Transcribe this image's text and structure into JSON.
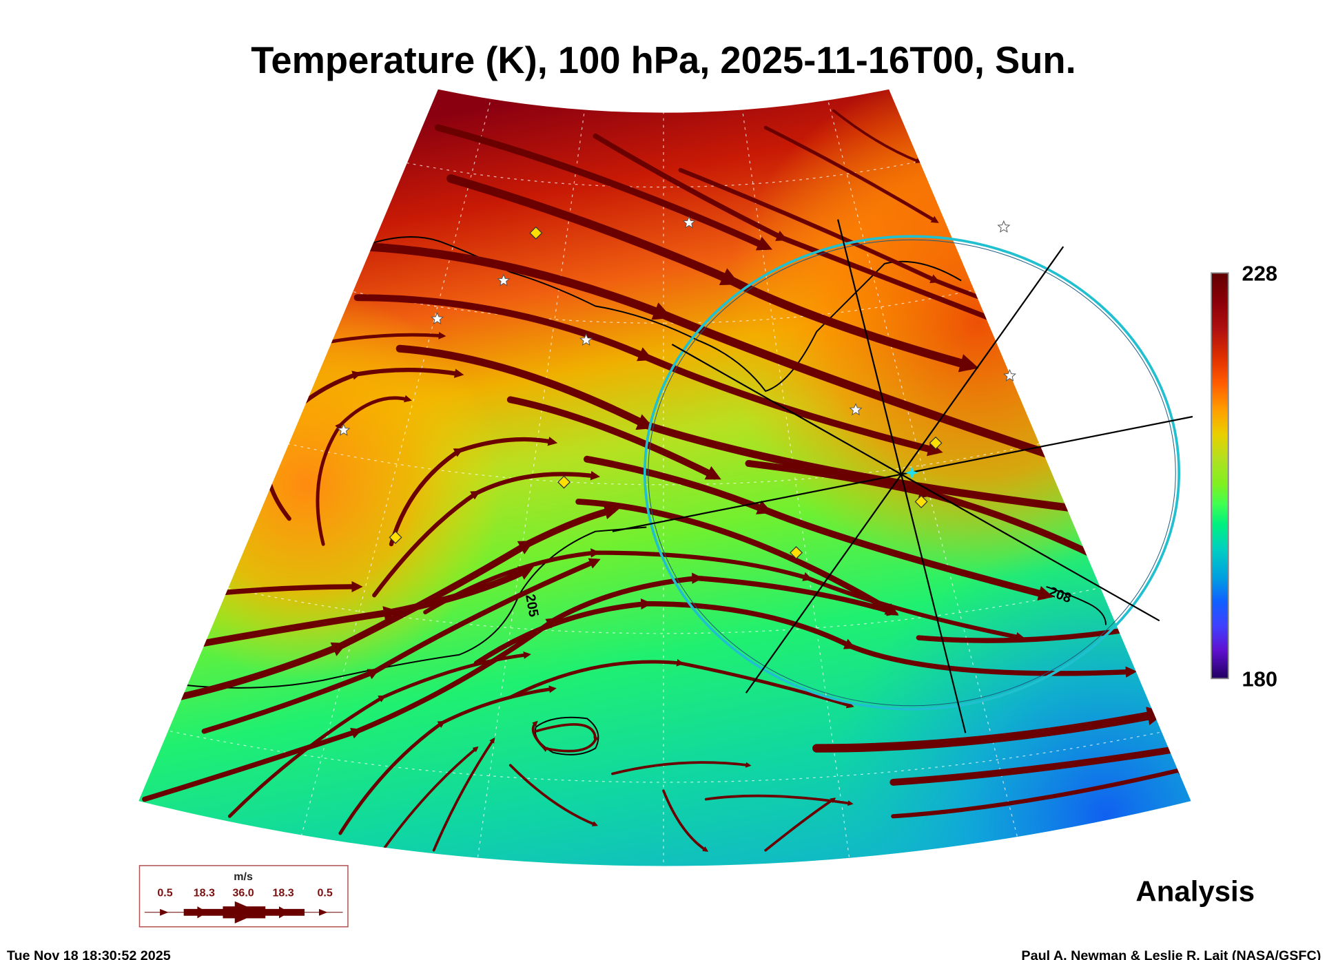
{
  "chart_data": {
    "type": "heatmap",
    "title": "Temperature (K), 100 hPa, 2025-11-16T00, Sun.",
    "variable": "Temperature (K)",
    "pressure_level": "100 hPa",
    "valid_time": "2025-11-16T00",
    "colorbar": {
      "min": 180,
      "max": 228,
      "min_label": "180",
      "max_label": "228",
      "colors": [
        "#600000",
        "#a00010",
        "#e03000",
        "#ff5a00",
        "#ffa000",
        "#e8d000",
        "#b0e020",
        "#80f020",
        "#40ff50",
        "#00f080",
        "#00d0c0",
        "#00a0e0",
        "#1060ff",
        "#4040ff",
        "#6010d0",
        "#200060"
      ]
    },
    "contour_labels": [
      "205",
      "208"
    ],
    "wind_legend": {
      "unit": "m/s",
      "values": [
        "0.5",
        "18.3",
        "36.0",
        "18.3",
        "0.5"
      ]
    },
    "product_label": "Analysis",
    "overlay_colors": {
      "streamline": "#6a0000",
      "ring": "#20c0d0",
      "diamond": "#ffe000"
    }
  },
  "footer": {
    "timestamp": "Tue Nov 18 18:30:52 2025",
    "credit": "Paul A. Newman & Leslie R. Lait (NASA/GSFC)"
  }
}
